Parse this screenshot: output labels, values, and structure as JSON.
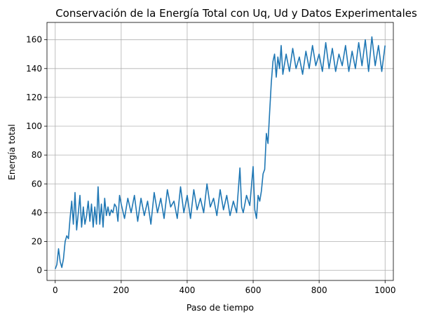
{
  "chart_data": {
    "type": "line",
    "title": "Conservación de la Energía Total con Uq, Ud y Datos Experimentales",
    "xlabel": "Paso de tiempo",
    "ylabel": "Energía total",
    "xlim": [
      -25,
      1025
    ],
    "ylim": [
      -7,
      172
    ],
    "xticks": [
      0,
      200,
      400,
      600,
      800,
      1000
    ],
    "yticks": [
      0,
      20,
      40,
      60,
      80,
      100,
      120,
      140,
      160
    ],
    "xtick_labels": [
      "0",
      "200",
      "400",
      "600",
      "800",
      "1000"
    ],
    "ytick_labels": [
      "0",
      "20",
      "40",
      "60",
      "80",
      "100",
      "120",
      "140",
      "160"
    ],
    "grid": true,
    "legend": "none",
    "colors": {
      "series": "#1f77b4",
      "grid": "#b0b0b0",
      "axes": "#000000"
    },
    "series": [
      {
        "x": [
          0,
          5,
          10,
          15,
          20,
          25,
          30,
          35,
          40,
          45,
          50,
          55,
          60,
          65,
          70,
          75,
          80,
          85,
          90,
          95,
          100,
          105,
          110,
          115,
          120,
          125,
          130,
          135,
          140,
          145,
          150,
          155,
          160,
          165,
          170,
          175,
          180,
          185,
          190,
          195,
          200,
          210,
          220,
          230,
          240,
          250,
          260,
          270,
          280,
          290,
          300,
          310,
          320,
          330,
          340,
          350,
          360,
          370,
          380,
          390,
          400,
          410,
          420,
          430,
          440,
          450,
          460,
          470,
          480,
          490,
          500,
          510,
          520,
          530,
          540,
          550,
          560,
          565,
          570,
          580,
          590,
          600,
          605,
          610,
          615,
          620,
          625,
          630,
          635,
          640,
          645,
          650,
          655,
          660,
          665,
          670,
          675,
          680,
          685,
          690,
          700,
          710,
          720,
          730,
          740,
          750,
          760,
          770,
          780,
          790,
          800,
          810,
          820,
          830,
          840,
          850,
          860,
          870,
          880,
          890,
          900,
          910,
          920,
          930,
          940,
          950,
          960,
          970,
          980,
          990,
          1000
        ],
        "y": [
          1,
          4,
          15,
          6,
          2,
          8,
          20,
          24,
          22,
          36,
          48,
          32,
          54,
          28,
          40,
          52,
          30,
          44,
          32,
          38,
          48,
          34,
          46,
          30,
          44,
          32,
          58,
          32,
          46,
          30,
          50,
          38,
          44,
          38,
          42,
          40,
          46,
          44,
          34,
          52,
          46,
          36,
          50,
          40,
          52,
          34,
          50,
          38,
          48,
          32,
          54,
          40,
          50,
          36,
          56,
          44,
          48,
          36,
          58,
          40,
          52,
          36,
          56,
          42,
          50,
          40,
          60,
          44,
          50,
          38,
          56,
          42,
          52,
          38,
          48,
          40,
          71,
          44,
          40,
          52,
          45,
          72,
          42,
          36,
          52,
          48,
          55,
          67,
          70,
          95,
          88,
          110,
          130,
          145,
          150,
          134,
          148,
          140,
          156,
          136,
          150,
          138,
          154,
          140,
          148,
          136,
          152,
          140,
          156,
          142,
          150,
          138,
          158,
          140,
          154,
          138,
          150,
          142,
          156,
          138,
          152,
          140,
          158,
          142,
          160,
          138,
          162,
          142,
          156,
          138,
          156
        ]
      }
    ]
  }
}
